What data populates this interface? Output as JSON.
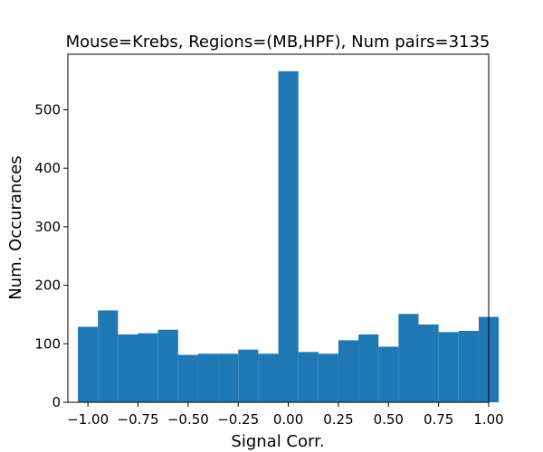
{
  "chart_data": {
    "type": "bar",
    "title": "Mouse=Krebs, Regions=(MB,HPF), Num pairs=3135",
    "xlabel": "Signal Corr.",
    "ylabel": "Num. Occurances",
    "bin_edges": [
      -1.05,
      -0.95,
      -0.85,
      -0.75,
      -0.65,
      -0.55,
      -0.45,
      -0.35,
      -0.25,
      -0.15,
      -0.05,
      0.05,
      0.15,
      0.25,
      0.35,
      0.45,
      0.55,
      0.65,
      0.75,
      0.85,
      0.95
    ],
    "values": [
      129,
      157,
      116,
      118,
      124,
      81,
      83,
      83,
      90,
      83,
      566,
      86,
      83,
      106,
      116,
      95,
      151,
      133,
      120,
      122,
      146
    ],
    "xlim": [
      -1.1,
      1.0
    ],
    "ylim": [
      0,
      595
    ],
    "xticks": [
      -1.0,
      -0.75,
      -0.5,
      -0.25,
      0.0,
      0.25,
      0.5,
      0.75,
      1.0
    ],
    "xtick_labels": [
      "−1.00",
      "−0.75",
      "−0.50",
      "−0.25",
      "0.00",
      "0.25",
      "0.50",
      "0.75",
      "1.00"
    ],
    "yticks": [
      0,
      100,
      200,
      300,
      400,
      500
    ],
    "ytick_labels": [
      "0",
      "100",
      "200",
      "300",
      "400",
      "500"
    ],
    "grid": false,
    "legend": "none",
    "bar_color": "#1f77b4"
  }
}
